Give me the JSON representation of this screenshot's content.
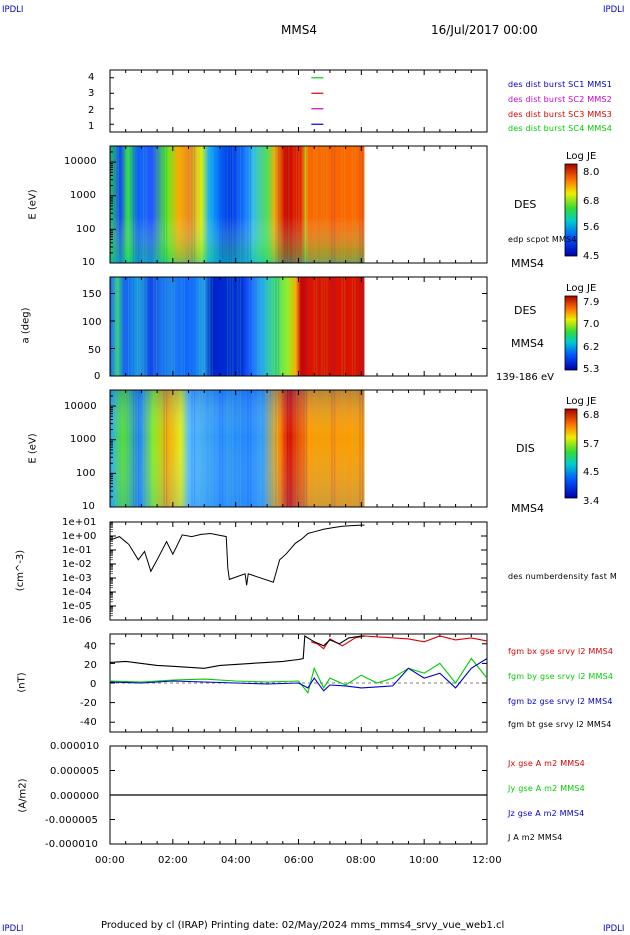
{
  "header": {
    "corner_left": "IPDLI",
    "corner_right": "IPDLI",
    "spacecraft": "MMS4",
    "date": "16/Jul/2017 00:00"
  },
  "footer": {
    "text": "Produced by cl (IRAP)   Printing date: 02/May/2024   mms_mms4_srvy_vue_web1.cl",
    "corner_left": "IPDLI",
    "corner_right": "IPDLI"
  },
  "x_axis": {
    "range_hours": [
      0,
      12
    ],
    "ticks": [
      "00:00",
      "02:00",
      "04:00",
      "06:00",
      "08:00",
      "10:00",
      "12:00"
    ]
  },
  "colors": {
    "mms1": "#0000cc",
    "mms2": "#cc00cc",
    "mms3": "#dd0000",
    "mms4": "#00cc00",
    "black": "#000000"
  },
  "chart_data": [
    {
      "id": "burst",
      "type": "scatter",
      "ylim": [
        0.5,
        4.5
      ],
      "yticks": [
        "1",
        "2",
        "3",
        "4"
      ],
      "legend": [
        "des dist burst SC1 MMS1",
        "des dist burst SC2 MMS2",
        "des dist burst SC3 MMS3",
        "des dist burst SC4 MMS4"
      ],
      "marks": [
        {
          "x": 6.6,
          "y": 1,
          "color": "mms1"
        },
        {
          "x": 6.6,
          "y": 2,
          "color": "mms2"
        },
        {
          "x": 6.6,
          "y": 3,
          "color": "mms3"
        },
        {
          "x": 6.6,
          "y": 4,
          "color": "mms4"
        }
      ]
    },
    {
      "id": "des_energy",
      "type": "heatmap",
      "ylabel": "E (eV)",
      "yscale": "log",
      "ylim": [
        10,
        30000
      ],
      "yticks": [
        "10",
        "100",
        "1000",
        "10000"
      ],
      "right_label": "DES",
      "sub_label": "edp scpot MMS4",
      "bottom_label": "MMS4",
      "colorbar": {
        "title": "Log JE",
        "ticks": [
          "8.0",
          "6.8",
          "5.6",
          "4.5"
        ]
      },
      "data_end_hour": 8.1
    },
    {
      "id": "des_pitch",
      "type": "heatmap",
      "ylabel": "a (deg)",
      "ylim": [
        0,
        180
      ],
      "yticks": [
        "0",
        "50",
        "100",
        "150"
      ],
      "right_label": "DES",
      "sub_label": "MMS4",
      "bottom_label": "139-186 eV",
      "colorbar": {
        "title": "Log JE",
        "ticks": [
          "7.9",
          "7.0",
          "6.2",
          "5.3"
        ]
      },
      "data_end_hour": 8.1
    },
    {
      "id": "dis_energy",
      "type": "heatmap",
      "ylabel": "E (eV)",
      "yscale": "log",
      "ylim": [
        10,
        30000
      ],
      "yticks": [
        "10",
        "100",
        "1000",
        "10000"
      ],
      "right_label": "DIS",
      "bottom_label": "MMS4",
      "colorbar": {
        "title": "Log JE",
        "ticks": [
          "6.8",
          "5.7",
          "4.5",
          "3.4"
        ]
      },
      "data_end_hour": 8.1
    },
    {
      "id": "density",
      "type": "line",
      "ylabel": "(cm^-3)",
      "yscale": "log",
      "yticks": [
        "1e+01",
        "1e+00",
        "1e-01",
        "1e-02",
        "1e-03",
        "1e-04",
        "1e-05",
        "1e-06"
      ],
      "legend": [
        "des numberdensity fast M"
      ],
      "series": [
        {
          "color": "black",
          "x": [
            0.0,
            0.3,
            0.6,
            0.9,
            1.1,
            1.3,
            1.5,
            1.8,
            2.0,
            2.3,
            2.6,
            2.9,
            3.2,
            3.5,
            3.7,
            3.75,
            3.8,
            4.3,
            4.35,
            4.4,
            5.2,
            5.4,
            5.6,
            5.9,
            6.1,
            6.3,
            6.5,
            6.8,
            7.1,
            7.4,
            7.7,
            8.0,
            8.1
          ],
          "y": [
            0.5,
            0.9,
            0.25,
            0.02,
            0.08,
            0.003,
            0.02,
            0.4,
            0.05,
            1.2,
            0.9,
            1.3,
            1.5,
            1.1,
            0.9,
            0.005,
            0.0008,
            0.002,
            0.0003,
            0.002,
            0.0005,
            0.02,
            0.05,
            0.3,
            0.6,
            1.5,
            2.0,
            3.0,
            4.0,
            5.0,
            5.5,
            6.0,
            6.0
          ]
        }
      ]
    },
    {
      "id": "bfield",
      "type": "line",
      "ylabel": "(nT)",
      "ylim": [
        -50,
        50
      ],
      "yticks": [
        "40",
        "20",
        "0",
        "-20",
        "-40"
      ],
      "legend": [
        "fgm bx gse srvy l2 MMS4",
        "fgm by gse srvy l2 MMS4",
        "fgm bz gse srvy l2 MMS4",
        "fgm bt gse srvy l2 MMS4"
      ],
      "series": [
        {
          "name": "bx",
          "color": "mms3",
          "x": [
            6.4,
            6.6,
            6.8,
            7.0,
            7.4,
            7.8,
            8.1,
            9.5,
            10.0,
            10.5,
            11.0,
            11.5,
            12.0
          ],
          "y": [
            42,
            40,
            35,
            45,
            38,
            46,
            48,
            45,
            42,
            48,
            44,
            46,
            43
          ]
        },
        {
          "name": "by",
          "color": "mms4",
          "x": [
            0,
            1,
            2,
            3,
            4,
            5,
            6.0,
            6.3,
            6.5,
            6.8,
            7.0,
            7.5,
            8.0,
            8.5,
            9.0,
            9.5,
            10.0,
            10.5,
            11.0,
            11.5,
            12.0
          ],
          "y": [
            2,
            1,
            3,
            4,
            2,
            1,
            2,
            -10,
            15,
            -5,
            5,
            -2,
            8,
            0,
            5,
            15,
            10,
            20,
            0,
            25,
            5
          ]
        },
        {
          "name": "bz",
          "color": "mms1",
          "x": [
            0,
            1,
            2,
            3,
            4,
            5,
            6.0,
            6.3,
            6.5,
            6.8,
            7.0,
            7.5,
            8.0,
            8.5,
            9.0,
            9.5,
            10.0,
            10.5,
            11.0,
            11.5,
            12.0
          ],
          "y": [
            1,
            0,
            2,
            1,
            0,
            -1,
            0,
            -5,
            5,
            -8,
            -2,
            -3,
            -5,
            -4,
            -3,
            15,
            5,
            10,
            -5,
            15,
            25
          ]
        },
        {
          "name": "bt",
          "color": "black",
          "x": [
            0,
            0.5,
            1,
            1.5,
            2,
            2.5,
            3,
            3.5,
            4,
            4.5,
            5,
            5.5,
            6,
            6.15,
            6.2,
            6.5,
            6.8,
            7.0,
            7.3,
            7.6,
            8.0,
            8.1
          ],
          "y": [
            21,
            22,
            20,
            18,
            17,
            16,
            15,
            18,
            19,
            20,
            21,
            22,
            24,
            25,
            48,
            42,
            38,
            44,
            40,
            46,
            48,
            48
          ]
        }
      ]
    },
    {
      "id": "current",
      "type": "line",
      "ylabel": "(A/m2)",
      "ylim": [
        -1e-05,
        1e-05
      ],
      "yticks": [
        "0.000010",
        "0.000005",
        "0.000000",
        "-0.000005",
        "-0.000010"
      ],
      "legend": [
        "Jx gse A m2 MMS4",
        "Jy gse A m2 MMS4",
        "Jz gse A m2 MMS4",
        "J A m2 MMS4"
      ],
      "series": [
        {
          "name": "J",
          "color": "black",
          "x": [
            0,
            12
          ],
          "y": [
            0,
            0
          ]
        }
      ]
    }
  ]
}
